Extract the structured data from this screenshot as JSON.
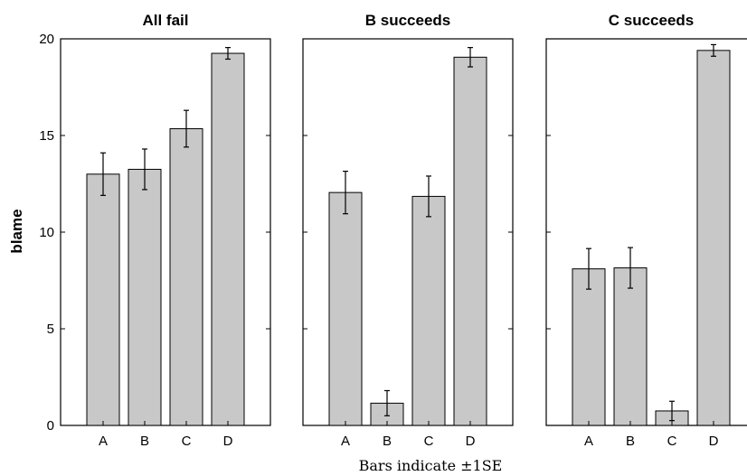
{
  "chart_data": {
    "type": "bar",
    "ylabel": "blame",
    "ylim": [
      0,
      20
    ],
    "yticks": [
      0,
      5,
      10,
      15,
      20
    ],
    "categories": [
      "A",
      "B",
      "C",
      "D"
    ],
    "caption": "Bars indicate ±1SE",
    "bar_color": "#c8c8c8",
    "panels": [
      {
        "title": "All fail",
        "values": [
          13.0,
          13.25,
          15.35,
          19.25
        ],
        "se": [
          1.1,
          1.05,
          0.95,
          0.3
        ]
      },
      {
        "title": "B succeeds",
        "values": [
          12.05,
          1.15,
          11.85,
          19.05
        ],
        "se": [
          1.1,
          0.65,
          1.05,
          0.5
        ]
      },
      {
        "title": "C succeeds",
        "values": [
          8.1,
          8.15,
          0.75,
          19.4
        ],
        "se": [
          1.05,
          1.05,
          0.5,
          0.3
        ]
      }
    ]
  }
}
